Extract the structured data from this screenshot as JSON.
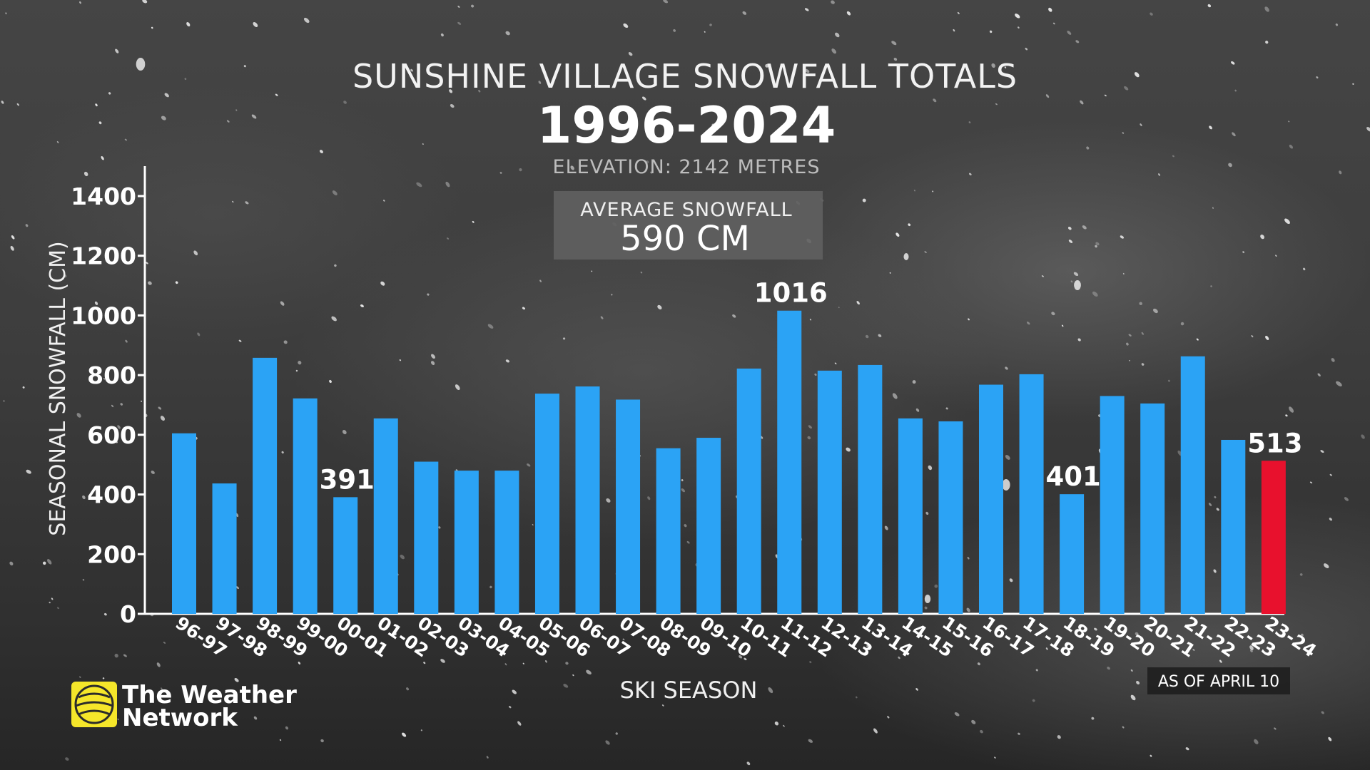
{
  "chart_data": {
    "type": "bar",
    "title": "SUNSHINE VILLAGE SNOWFALL TOTALS",
    "subtitle": "1996-2024",
    "elevation_note": "ELEVATION: 2142 METRES",
    "average_box": {
      "label": "AVERAGE SNOWFALL",
      "value": "590 CM"
    },
    "xlabel": "SKI SEASON",
    "ylabel": "SEASONAL SNOWFALL (CM)",
    "ylim": [
      0,
      1400
    ],
    "yticks": [
      0,
      200,
      400,
      600,
      800,
      1000,
      1200,
      1400
    ],
    "grid": false,
    "categories": [
      "96-97",
      "97-98",
      "98-99",
      "99-00",
      "00-01",
      "01-02",
      "02-03",
      "03-04",
      "04-05",
      "05-06",
      "06-07",
      "07-08",
      "08-09",
      "09-10",
      "10-11",
      "11-12",
      "12-13",
      "13-14",
      "14-15",
      "15-16",
      "16-17",
      "17-18",
      "18-19",
      "19-20",
      "20-21",
      "21-22",
      "22-23",
      "23-24"
    ],
    "values": [
      605,
      437,
      858,
      722,
      391,
      655,
      510,
      480,
      480,
      738,
      762,
      718,
      555,
      590,
      822,
      1016,
      815,
      834,
      655,
      645,
      768,
      803,
      401,
      730,
      705,
      863,
      583,
      513
    ],
    "bar_color": "#2ba3f5",
    "highlight_color": "#e8112d",
    "highlight_index": 27,
    "data_labels": [
      {
        "index": 4,
        "text": "391"
      },
      {
        "index": 15,
        "text": "1016"
      },
      {
        "index": 22,
        "text": "401"
      },
      {
        "index": 27,
        "text": "513"
      }
    ],
    "note": "AS OF APRIL 10"
  },
  "branding": {
    "logo_line1": "The Weather",
    "logo_line2": "Network",
    "logo_accent": "#f5e62a"
  }
}
